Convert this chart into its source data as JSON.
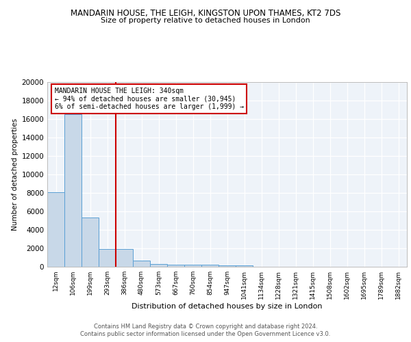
{
  "title1": "MANDARIN HOUSE, THE LEIGH, KINGSTON UPON THAMES, KT2 7DS",
  "title2": "Size of property relative to detached houses in London",
  "xlabel": "Distribution of detached houses by size in London",
  "ylabel": "Number of detached properties",
  "categories": [
    "12sqm",
    "106sqm",
    "199sqm",
    "293sqm",
    "386sqm",
    "480sqm",
    "573sqm",
    "667sqm",
    "760sqm",
    "854sqm",
    "947sqm",
    "1041sqm",
    "1134sqm",
    "1228sqm",
    "1321sqm",
    "1415sqm",
    "1508sqm",
    "1602sqm",
    "1695sqm",
    "1789sqm",
    "1882sqm"
  ],
  "values": [
    8100,
    16500,
    5300,
    1900,
    1900,
    700,
    300,
    230,
    220,
    190,
    160,
    140,
    0,
    0,
    0,
    0,
    0,
    0,
    0,
    0,
    0
  ],
  "bar_color": "#c8d8e8",
  "bar_edge_color": "#5a9fd4",
  "vline_x": 3.5,
  "vline_color": "#cc0000",
  "annotation_text": "MANDARIN HOUSE THE LEIGH: 340sqm\n← 94% of detached houses are smaller (30,945)\n6% of semi-detached houses are larger (1,999) →",
  "annotation_box_color": "#ffffff",
  "annotation_box_edge": "#cc0000",
  "ylim": [
    0,
    20000
  ],
  "yticks": [
    0,
    2000,
    4000,
    6000,
    8000,
    10000,
    12000,
    14000,
    16000,
    18000,
    20000
  ],
  "footer1": "Contains HM Land Registry data © Crown copyright and database right 2024.",
  "footer2": "Contains public sector information licensed under the Open Government Licence v3.0.",
  "bg_color": "#eef3f9",
  "plot_bg": "#eef3f9"
}
